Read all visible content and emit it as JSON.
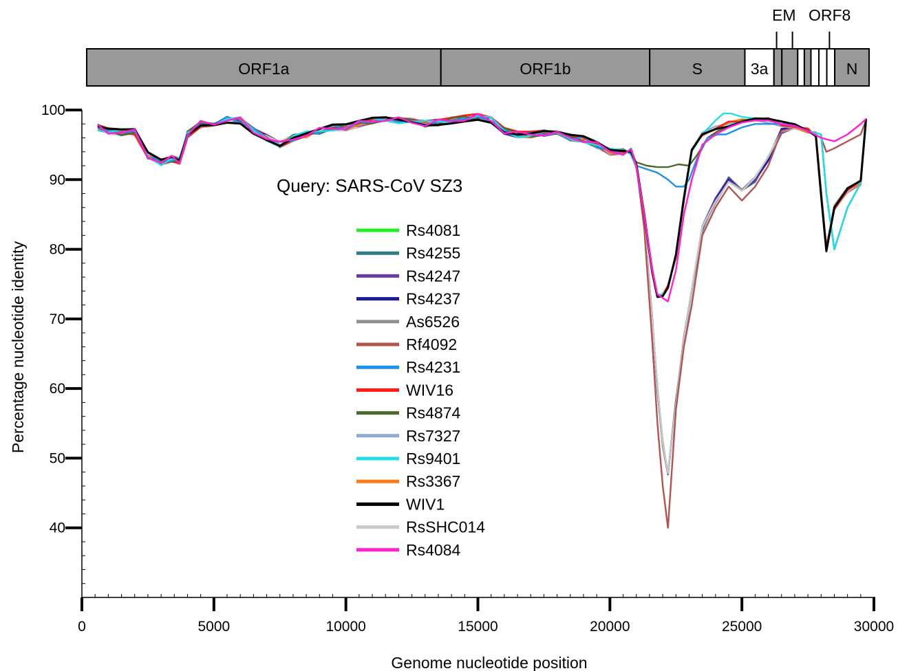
{
  "chart_data": {
    "type": "line",
    "xlabel": "Genome nucleotide position",
    "ylabel": "Percentage nucleotide identity",
    "annotation": "Query: SARS-CoV SZ3",
    "xlim": [
      0,
      30000
    ],
    "ylim": [
      30,
      100
    ],
    "x_ticks": [
      0,
      5000,
      10000,
      15000,
      20000,
      25000,
      30000
    ],
    "y_ticks": [
      40,
      50,
      60,
      70,
      80,
      90,
      100
    ],
    "grid": false,
    "legend_position": "center",
    "genome_map": {
      "genes": [
        {
          "label": "ORF1a",
          "start": 250,
          "end": 13650,
          "fill": "#999999"
        },
        {
          "label": "ORF1b",
          "start": 13650,
          "end": 21550,
          "fill": "#999999"
        },
        {
          "label": "S",
          "start": 21550,
          "end": 25150,
          "fill": "#999999"
        },
        {
          "label": "3a",
          "start": 25150,
          "end": 26250,
          "fill": "#ffffff"
        },
        {
          "label": "",
          "start": 26250,
          "end": 26550,
          "fill": "#999999"
        },
        {
          "label": "",
          "start": 26550,
          "end": 27150,
          "fill": "#999999"
        },
        {
          "label": "",
          "start": 27150,
          "end": 27400,
          "fill": "#ffffff"
        },
        {
          "label": "",
          "start": 27400,
          "end": 27650,
          "fill": "#999999"
        },
        {
          "label": "",
          "start": 27650,
          "end": 27950,
          "fill": "#ffffff"
        },
        {
          "label": "",
          "start": 27950,
          "end": 28250,
          "fill": "#ffffff"
        },
        {
          "label": "",
          "start": 28250,
          "end": 28550,
          "fill": "#ffffff"
        },
        {
          "label": "N",
          "start": 28550,
          "end": 29850,
          "fill": "#999999"
        }
      ],
      "markers": [
        {
          "label": "EM",
          "positions": [
            26350,
            26950
          ]
        },
        {
          "label": "ORF8",
          "positions": [
            28350
          ]
        }
      ]
    },
    "series": [
      {
        "name": "Rs4081",
        "color": "#22ee22",
        "group": "B"
      },
      {
        "name": "Rs4255",
        "color": "#2e7d8a",
        "group": "B"
      },
      {
        "name": "Rs4247",
        "color": "#6a3aa3",
        "group": "B"
      },
      {
        "name": "Rs4237",
        "color": "#1a1a9a",
        "group": "B"
      },
      {
        "name": "As6526",
        "color": "#8f8f8f",
        "group": "B"
      },
      {
        "name": "Rf4092",
        "color": "#b5514f",
        "group": "Rf"
      },
      {
        "name": "Rs4231",
        "color": "#1e90e8",
        "group": "Rs4231"
      },
      {
        "name": "WIV16",
        "color": "#ff1a1a",
        "group": "A"
      },
      {
        "name": "Rs4874",
        "color": "#4a6a2a",
        "group": "A"
      },
      {
        "name": "Rs7327",
        "color": "#8faad0",
        "group": "A"
      },
      {
        "name": "Rs9401",
        "color": "#22dde8",
        "group": "A"
      },
      {
        "name": "Rs3367",
        "color": "#ff7a12",
        "group": "A"
      },
      {
        "name": "WIV1",
        "color": "#000000",
        "group": "A"
      },
      {
        "name": "RsSHC014",
        "color": "#c8c8c8",
        "group": "B"
      },
      {
        "name": "Rs4084",
        "color": "#ff1fd6",
        "group": "Rs4084"
      }
    ],
    "profiles": {
      "common_x": [
        600,
        1000,
        1500,
        2000,
        2500,
        3000,
        3400,
        3700,
        4000,
        4500,
        5000,
        5500,
        6000,
        6500,
        7000,
        7500,
        8000,
        8500,
        9000,
        9500,
        10000,
        10500,
        11000,
        11500,
        12000,
        12500,
        13000,
        13500,
        14000,
        14500,
        15000,
        15500,
        16000,
        16500,
        17000,
        17500,
        18000,
        18500,
        19000,
        19500,
        20000,
        20500,
        20800
      ],
      "common_y": [
        97.5,
        97,
        96.8,
        96.8,
        93.5,
        92.5,
        93,
        92.7,
        96.5,
        98,
        98.2,
        98.6,
        98.5,
        97,
        96,
        95,
        96,
        96.5,
        97,
        97.5,
        97.5,
        98,
        98.5,
        98.7,
        98.5,
        98.3,
        98,
        98.2,
        98.5,
        98.8,
        99,
        98.5,
        97,
        96.5,
        96.5,
        96.7,
        96.5,
        96,
        95.8,
        95,
        94,
        94,
        94
      ],
      "A": {
        "x": [
          21000,
          21300,
          21600,
          21800,
          22000,
          22200,
          22500,
          22800,
          23100,
          23500,
          24000,
          24500,
          25000,
          25500,
          26000,
          26500,
          27000,
          27500,
          27800,
          28000,
          28200,
          28500,
          29000,
          29500,
          29700
        ],
        "y": [
          92,
          85,
          77,
          73.5,
          73.5,
          74.5,
          79,
          87,
          94,
          96.5,
          97.5,
          98,
          98.5,
          98.8,
          98.5,
          98,
          97.7,
          97,
          96.5,
          88,
          80,
          86,
          88.5,
          89.5,
          98.5
        ]
      },
      "B": {
        "x": [
          21000,
          21300,
          21600,
          21800,
          22000,
          22200,
          22500,
          22800,
          23100,
          23500,
          24000,
          24500,
          25000,
          25500,
          26000,
          26500,
          27000,
          27500,
          27800,
          28000,
          28200,
          28500,
          29000,
          29500,
          29700
        ],
        "y": [
          92,
          84,
          70,
          60,
          52,
          48,
          58,
          67,
          74,
          83,
          87,
          90,
          88.5,
          90,
          93,
          97,
          97.7,
          97,
          96.5,
          88,
          80,
          86,
          88.5,
          89.5,
          98.5
        ]
      },
      "Rf": {
        "x": [
          21000,
          21300,
          21600,
          21800,
          22000,
          22200,
          22500,
          22800,
          23100,
          23500,
          24000,
          24500,
          25000,
          25500,
          26000,
          26500,
          27000,
          27500,
          28000,
          28200,
          28500,
          29000,
          29500,
          29700
        ],
        "y": [
          92,
          83,
          67,
          55,
          46,
          40,
          57,
          66,
          72,
          82,
          86,
          89,
          87,
          89,
          92,
          97,
          97.5,
          97,
          96,
          94,
          94.5,
          95.5,
          96.5,
          98.5
        ]
      },
      "Rs4231": {
        "x": [
          21000,
          21400,
          21800,
          22200,
          22500,
          22800,
          23000,
          23300,
          23700,
          24100,
          24400,
          24700,
          25000,
          25500,
          26000,
          26500,
          27000,
          27500,
          28000,
          28200,
          28500,
          29000,
          29500,
          29700
        ],
        "y": [
          92,
          91.5,
          91,
          90,
          89,
          89,
          90,
          93,
          96,
          96.5,
          96.5,
          97,
          97.5,
          98,
          98,
          98,
          98,
          97,
          96.5,
          88,
          80,
          86,
          89.5,
          98.5
        ]
      },
      "Rs4084": {
        "x": [
          21000,
          21300,
          21600,
          21800,
          22000,
          22200,
          22500,
          22800,
          23100,
          23500,
          24000,
          24500,
          25000,
          25500,
          26000,
          26500,
          27000,
          27500,
          28000,
          28500,
          29000,
          29500,
          29700
        ],
        "y": [
          92,
          85,
          77,
          73.5,
          73,
          72.5,
          77,
          85,
          90,
          95,
          96.5,
          97.5,
          98.2,
          98.5,
          98.5,
          98,
          97.7,
          97,
          96,
          95.5,
          96.5,
          98,
          98.7
        ]
      },
      "Rs4874": {
        "x": [
          21000,
          21400,
          21800,
          22200,
          22600,
          23000,
          23300,
          23700,
          24100,
          24500,
          25000,
          25500,
          26000,
          26500,
          27000,
          27500,
          28000,
          28200,
          28500,
          29000,
          29500,
          29700
        ],
        "y": [
          92.5,
          92,
          91.8,
          91.8,
          92.2,
          92,
          93.5,
          96,
          97,
          97.5,
          98.5,
          98.8,
          98.5,
          98,
          97.7,
          97,
          96.5,
          88,
          80,
          86,
          89.5,
          98.5
        ]
      },
      "Rs9401": {
        "x": [
          21000,
          21300,
          21600,
          21800,
          22000,
          22200,
          22500,
          22800,
          23100,
          23500,
          24000,
          24300,
          24600,
          25000,
          25500,
          26000,
          26500,
          27000,
          27500,
          28000,
          28200,
          28500,
          29000,
          29500,
          29700
        ],
        "y": [
          92,
          85,
          77,
          73.5,
          73.5,
          74.5,
          79,
          87,
          94,
          96.5,
          98.5,
          99.5,
          99.5,
          99,
          98.8,
          98.5,
          98,
          97.7,
          97,
          96.5,
          88,
          80,
          86,
          89.5,
          98.5
        ]
      }
    }
  }
}
